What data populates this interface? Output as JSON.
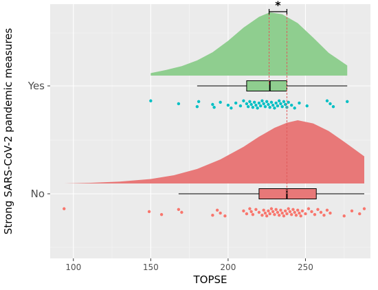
{
  "chart_data": {
    "type": "raincloud",
    "xlabel": "TOPSE",
    "ylabel": "Strong SARS-CoV-2 pandemic measures",
    "xlim": [
      85,
      292
    ],
    "x_ticks": [
      100,
      150,
      200,
      250
    ],
    "grid": true,
    "legend": "none",
    "significance": {
      "label": "*",
      "between": [
        "Yes",
        "No"
      ],
      "lines_at": [
        226.5,
        238
      ]
    },
    "groups": [
      {
        "label": "Yes",
        "color": "#8fce8f",
        "point_color": "#00bfc4",
        "range": [
          150,
          277
        ],
        "box": {
          "min": 180,
          "q1": 212,
          "median": 227,
          "q3": 238,
          "max": 277
        },
        "density": [
          [
            150,
            0.04
          ],
          [
            160,
            0.09
          ],
          [
            170,
            0.15
          ],
          [
            180,
            0.24
          ],
          [
            190,
            0.37
          ],
          [
            200,
            0.55
          ],
          [
            210,
            0.76
          ],
          [
            220,
            0.93
          ],
          [
            227,
            1.0
          ],
          [
            235,
            0.97
          ],
          [
            245,
            0.83
          ],
          [
            255,
            0.6
          ],
          [
            265,
            0.36
          ],
          [
            277,
            0.16
          ]
        ],
        "points": [
          150,
          168,
          180,
          181,
          190,
          191,
          195,
          200,
          202,
          205,
          208,
          210,
          212,
          213,
          214,
          215,
          216,
          217,
          218,
          219,
          220,
          221,
          222,
          223,
          224,
          225,
          226,
          227,
          228,
          229,
          230,
          231,
          232,
          233,
          234,
          235,
          236,
          237,
          238,
          239,
          241,
          243,
          246,
          251,
          264,
          266,
          268,
          277
        ]
      },
      {
        "label": "No",
        "color": "#e87878",
        "point_color": "#f8766d",
        "range": [
          94,
          288
        ],
        "box": {
          "min": 168,
          "q1": 220,
          "median": 238,
          "q3": 257,
          "max": 288
        },
        "density": [
          [
            94,
            0.0
          ],
          [
            110,
            0.01
          ],
          [
            130,
            0.03
          ],
          [
            150,
            0.07
          ],
          [
            165,
            0.13
          ],
          [
            180,
            0.23
          ],
          [
            195,
            0.38
          ],
          [
            210,
            0.58
          ],
          [
            220,
            0.74
          ],
          [
            230,
            0.88
          ],
          [
            238,
            0.96
          ],
          [
            245,
            1.0
          ],
          [
            255,
            0.95
          ],
          [
            265,
            0.83
          ],
          [
            275,
            0.66
          ],
          [
            288,
            0.43
          ]
        ],
        "points": [
          94,
          149,
          157,
          168,
          170,
          190,
          193,
          195,
          198,
          210,
          212,
          214,
          215,
          216,
          218,
          220,
          222,
          223,
          224,
          225,
          226,
          227,
          228,
          229,
          230,
          231,
          232,
          233,
          234,
          235,
          236,
          237,
          238,
          239,
          240,
          241,
          242,
          243,
          244,
          245,
          246,
          247,
          248,
          250,
          252,
          254,
          256,
          258,
          260,
          262,
          264,
          266,
          275,
          280,
          285,
          288
        ]
      }
    ]
  }
}
